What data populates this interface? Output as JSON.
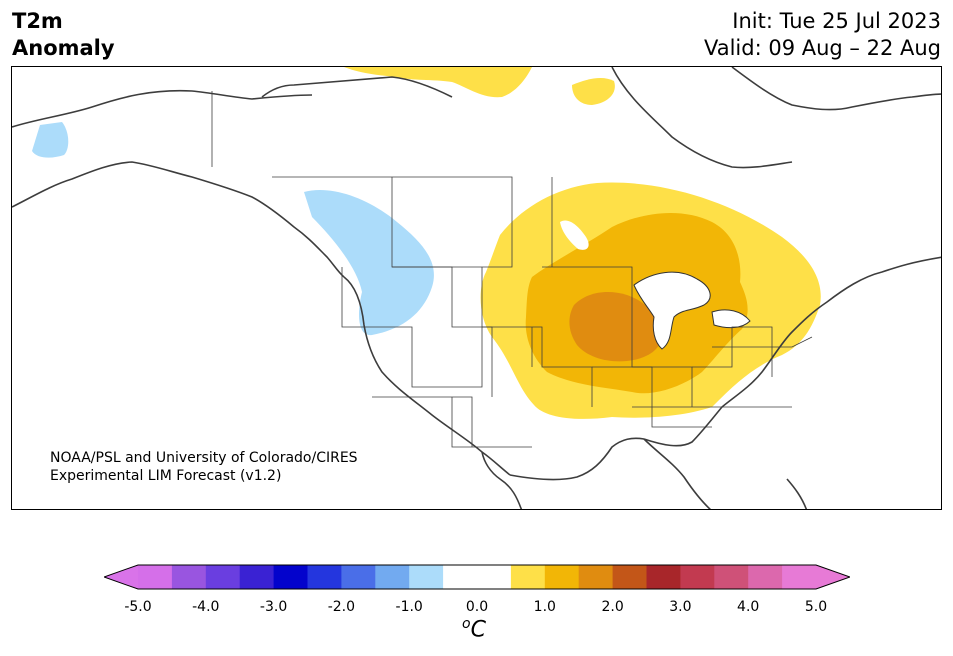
{
  "title": {
    "line1": "T2m",
    "line2": "Anomaly"
  },
  "dates": {
    "init": "Init: Tue 25 Jul 2023",
    "valid": "Valid: 09 Aug – 22 Aug"
  },
  "credit": {
    "line1": "NOAA/PSL and University of Colorado/CIRES",
    "line2": "Experimental LIM Forecast (v1.2)"
  },
  "colorbar": {
    "unit_base": "C",
    "unit_sup": "o",
    "ticks": [
      "-5.0",
      "-4.0",
      "-3.0",
      "-2.0",
      "-1.0",
      "0.0",
      "1.0",
      "2.0",
      "3.0",
      "4.0",
      "5.0"
    ],
    "colors": [
      "#d56fe9",
      "#9955e0",
      "#6a3ee0",
      "#3a22d3",
      "#0303cc",
      "#2436de",
      "#4a6ee8",
      "#72aaf0",
      "#acdcfa",
      "#ffffff",
      "#ffffff",
      "#fee048",
      "#f2b606",
      "#e08c10",
      "#c35618",
      "#a8262a",
      "#c23a50",
      "#cf5178",
      "#dc68ad",
      "#e77ad6"
    ],
    "under_color": "#d973e9",
    "over_color": "#e77ad6"
  },
  "anomaly_colors": {
    "warm_1": "#fee048",
    "warm_2": "#f2b606",
    "warm_3": "#e08c10",
    "cool_1": "#acdcfa"
  }
}
